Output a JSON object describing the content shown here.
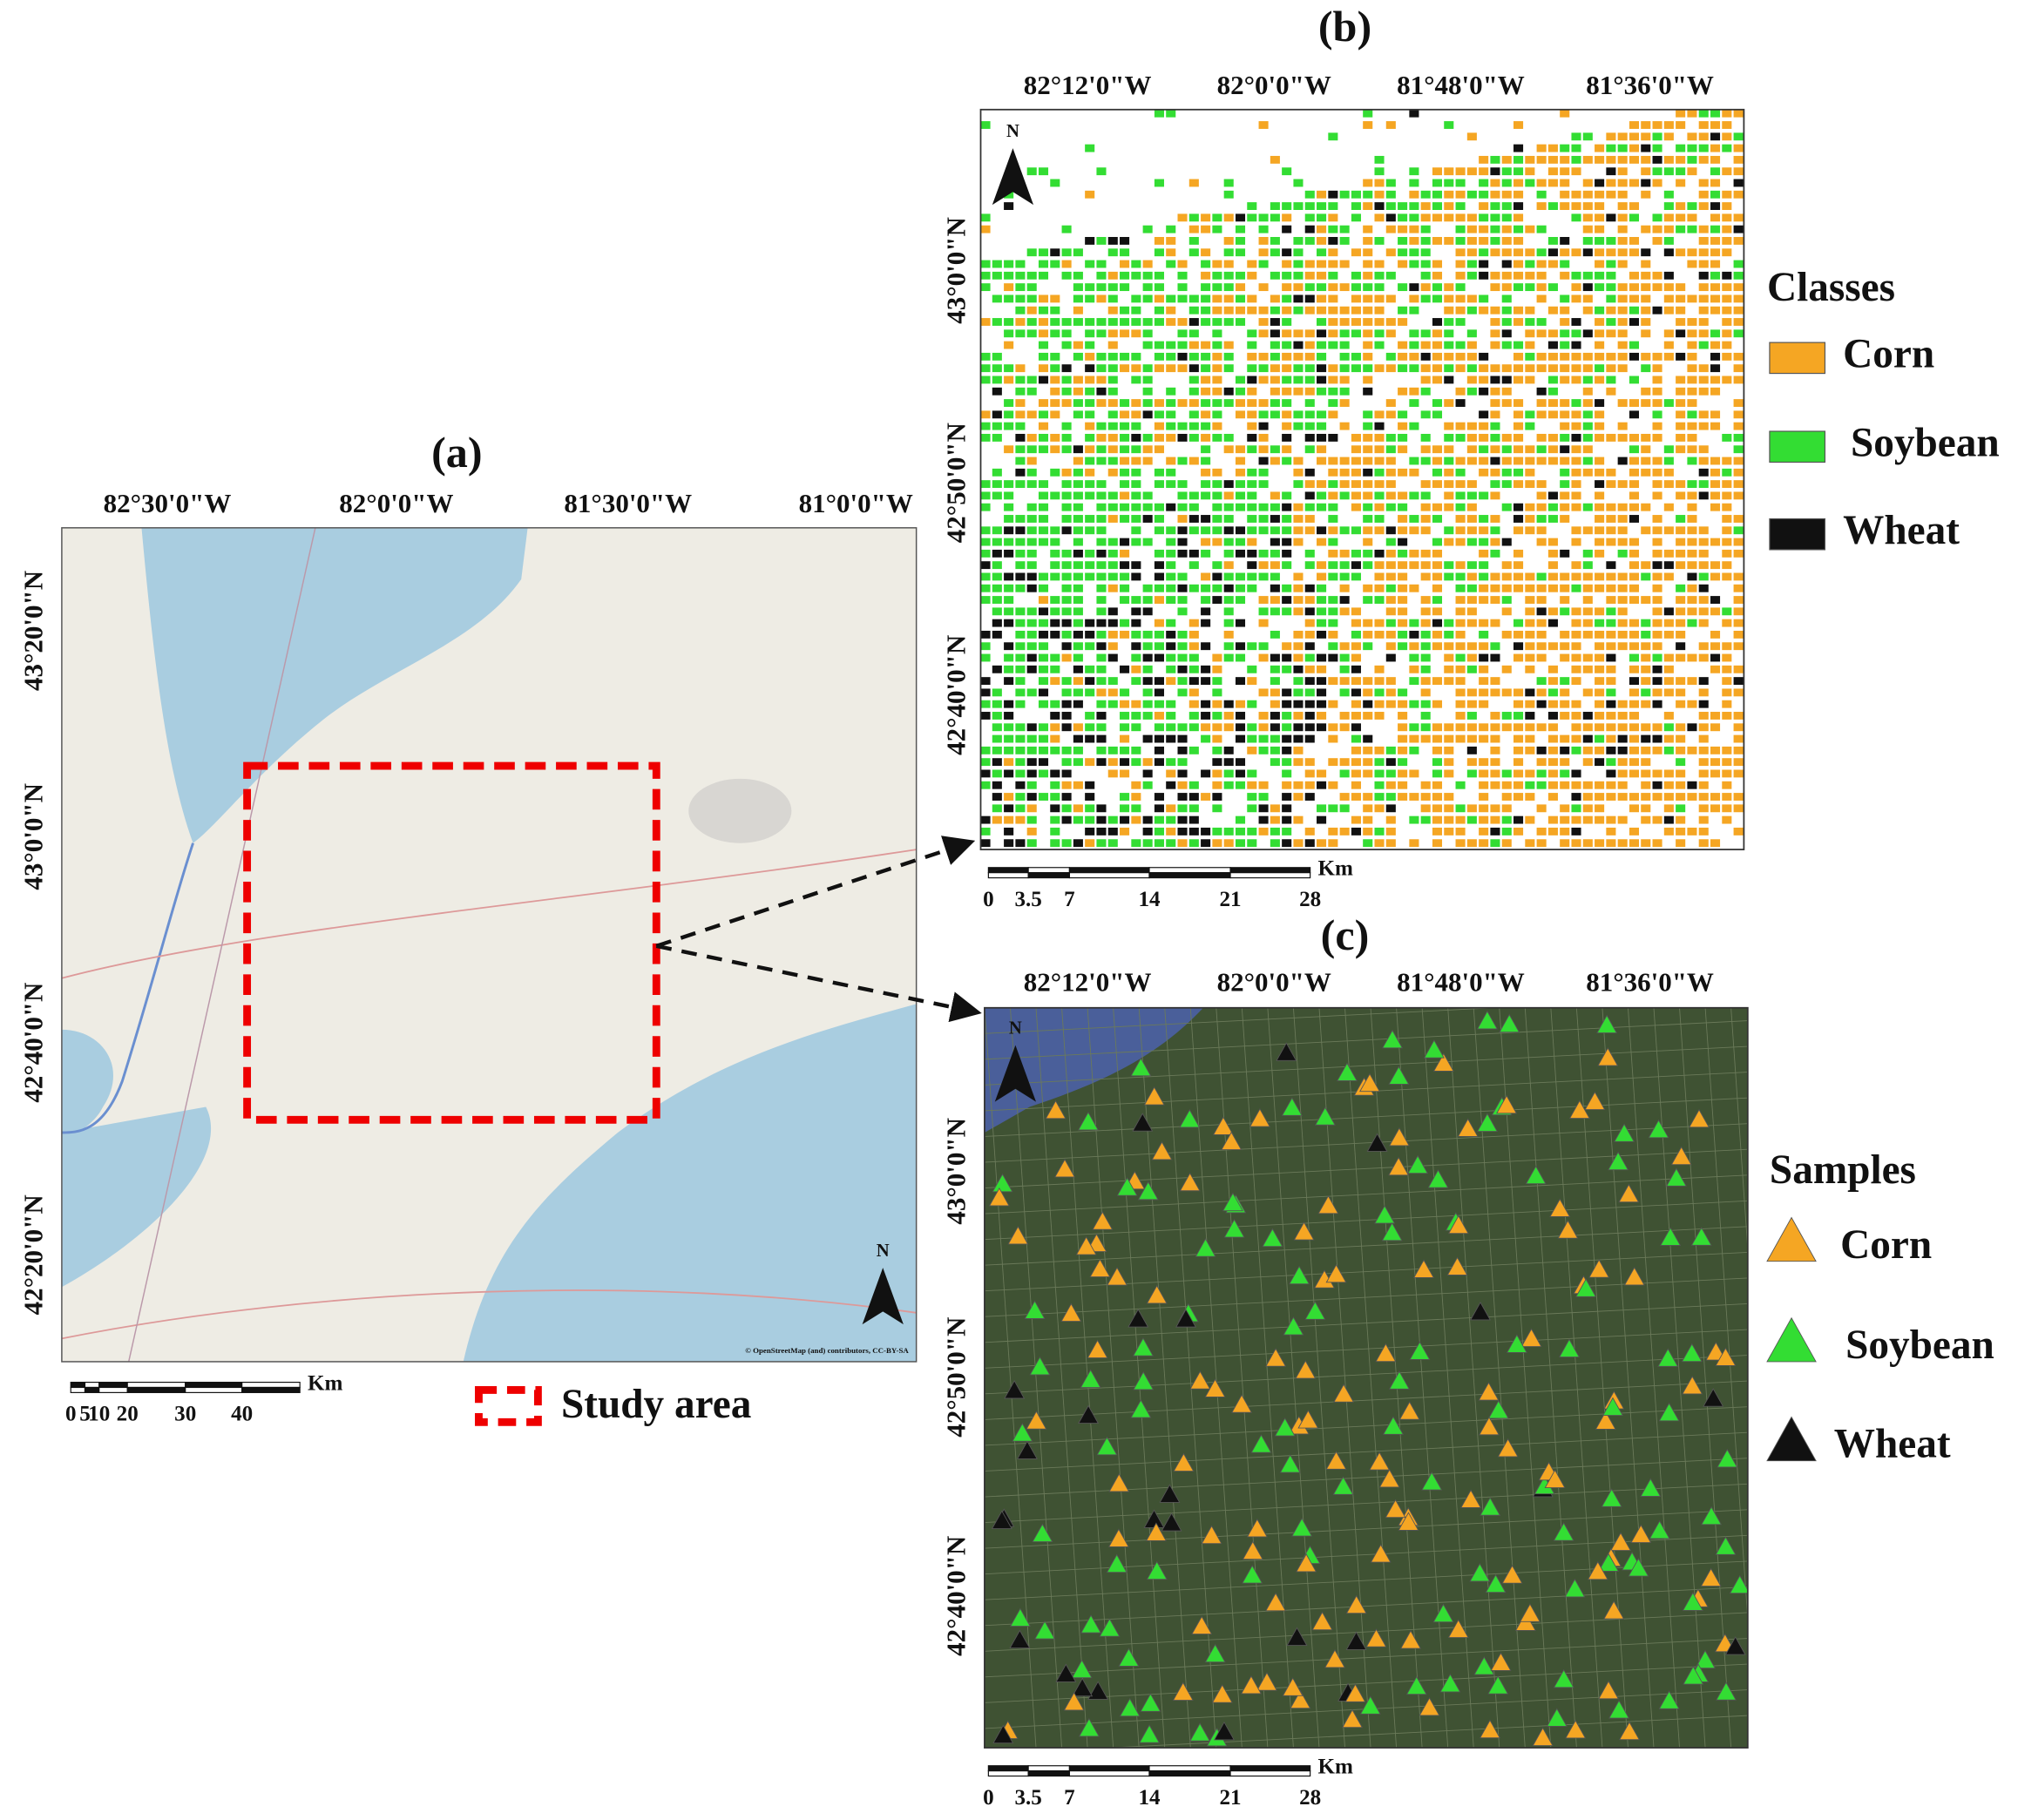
{
  "panels": {
    "a": {
      "label": "(a)",
      "lon_labels": [
        "82°30'0\"W",
        "82°0'0\"W",
        "81°30'0\"W",
        "81°0'0\"W"
      ],
      "lat_labels": [
        "43°20'0\"N",
        "43°0'0\"N",
        "42°40'0\"N",
        "42°20'0\"N"
      ],
      "scale_ticks": [
        "0",
        "5",
        "10",
        "20",
        "30",
        "40"
      ],
      "scale_unit": "Km",
      "north": "N",
      "legend": "Study area",
      "attribution": "© OpenStreetMap (and) contributors, CC-BY-SA"
    },
    "b": {
      "label": "(b)",
      "lon_labels": [
        "82°12'0\"W",
        "82°0'0\"W",
        "81°48'0\"W",
        "81°36'0\"W"
      ],
      "lat_labels": [
        "43°0'0\"N",
        "42°50'0\"N",
        "42°40'0\"N"
      ],
      "scale_ticks": [
        "0",
        "3.5",
        "7",
        "14",
        "21",
        "28"
      ],
      "scale_unit": "Km",
      "north": "N",
      "legend_title": "Classes",
      "legend_items": [
        "Corn",
        "Soybean",
        "Wheat"
      ]
    },
    "c": {
      "label": "(c)",
      "lon_labels": [
        "82°12'0\"W",
        "82°0'0\"W",
        "81°48'0\"W",
        "81°36'0\"W"
      ],
      "lat_labels": [
        "43°0'0\"N",
        "42°50'0\"N",
        "42°40'0\"N"
      ],
      "scale_ticks": [
        "0",
        "3.5",
        "7",
        "14",
        "21",
        "28"
      ],
      "scale_unit": "Km",
      "north": "N",
      "legend_title": "Samples",
      "legend_items": [
        "Corn",
        "Soybean",
        "Wheat"
      ]
    }
  }
}
